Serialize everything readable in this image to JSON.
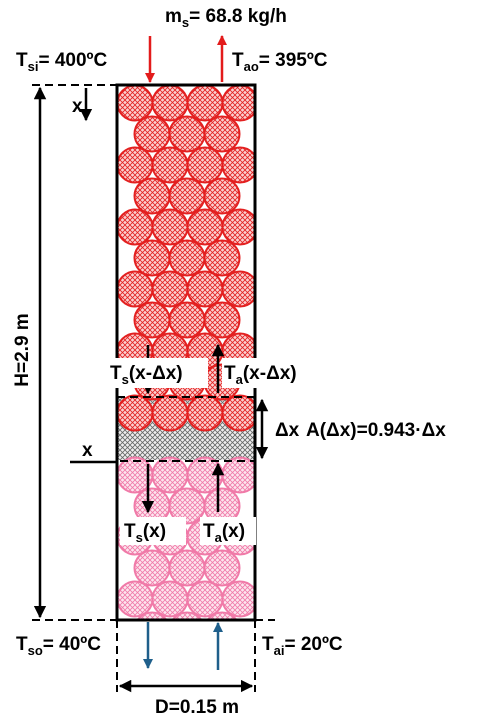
{
  "labels": {
    "mass_flow": {
      "main": "m",
      "sub": "s",
      "rest": "= 68.8 kg/h"
    },
    "solid_in": {
      "main": "T",
      "sub": "si",
      "rest": "= 400ºC"
    },
    "air_out": {
      "main": "T",
      "sub": "ao",
      "rest": "= 395ºC"
    },
    "height": "H=2.9 m",
    "x_top": "x",
    "solid_upper": {
      "main": "T",
      "sub": "s",
      "rest": "(x-Δx)"
    },
    "air_upper": {
      "main": "T",
      "sub": "a",
      "rest": "(x-Δx)"
    },
    "delta_x": "Δx",
    "area": "A(Δx)=0.943·Δx",
    "x_mid": "x",
    "solid_lower": {
      "main": "T",
      "sub": "s",
      "rest": "(x)"
    },
    "air_lower": {
      "main": "T",
      "sub": "a",
      "rest": "(x)"
    },
    "solid_out": {
      "main": "T",
      "sub": "so",
      "rest": "= 40ºC"
    },
    "air_in": {
      "main": "T",
      "sub": "ai",
      "rest": "= 20ºC"
    },
    "diameter": "D=0.15 m"
  }
}
